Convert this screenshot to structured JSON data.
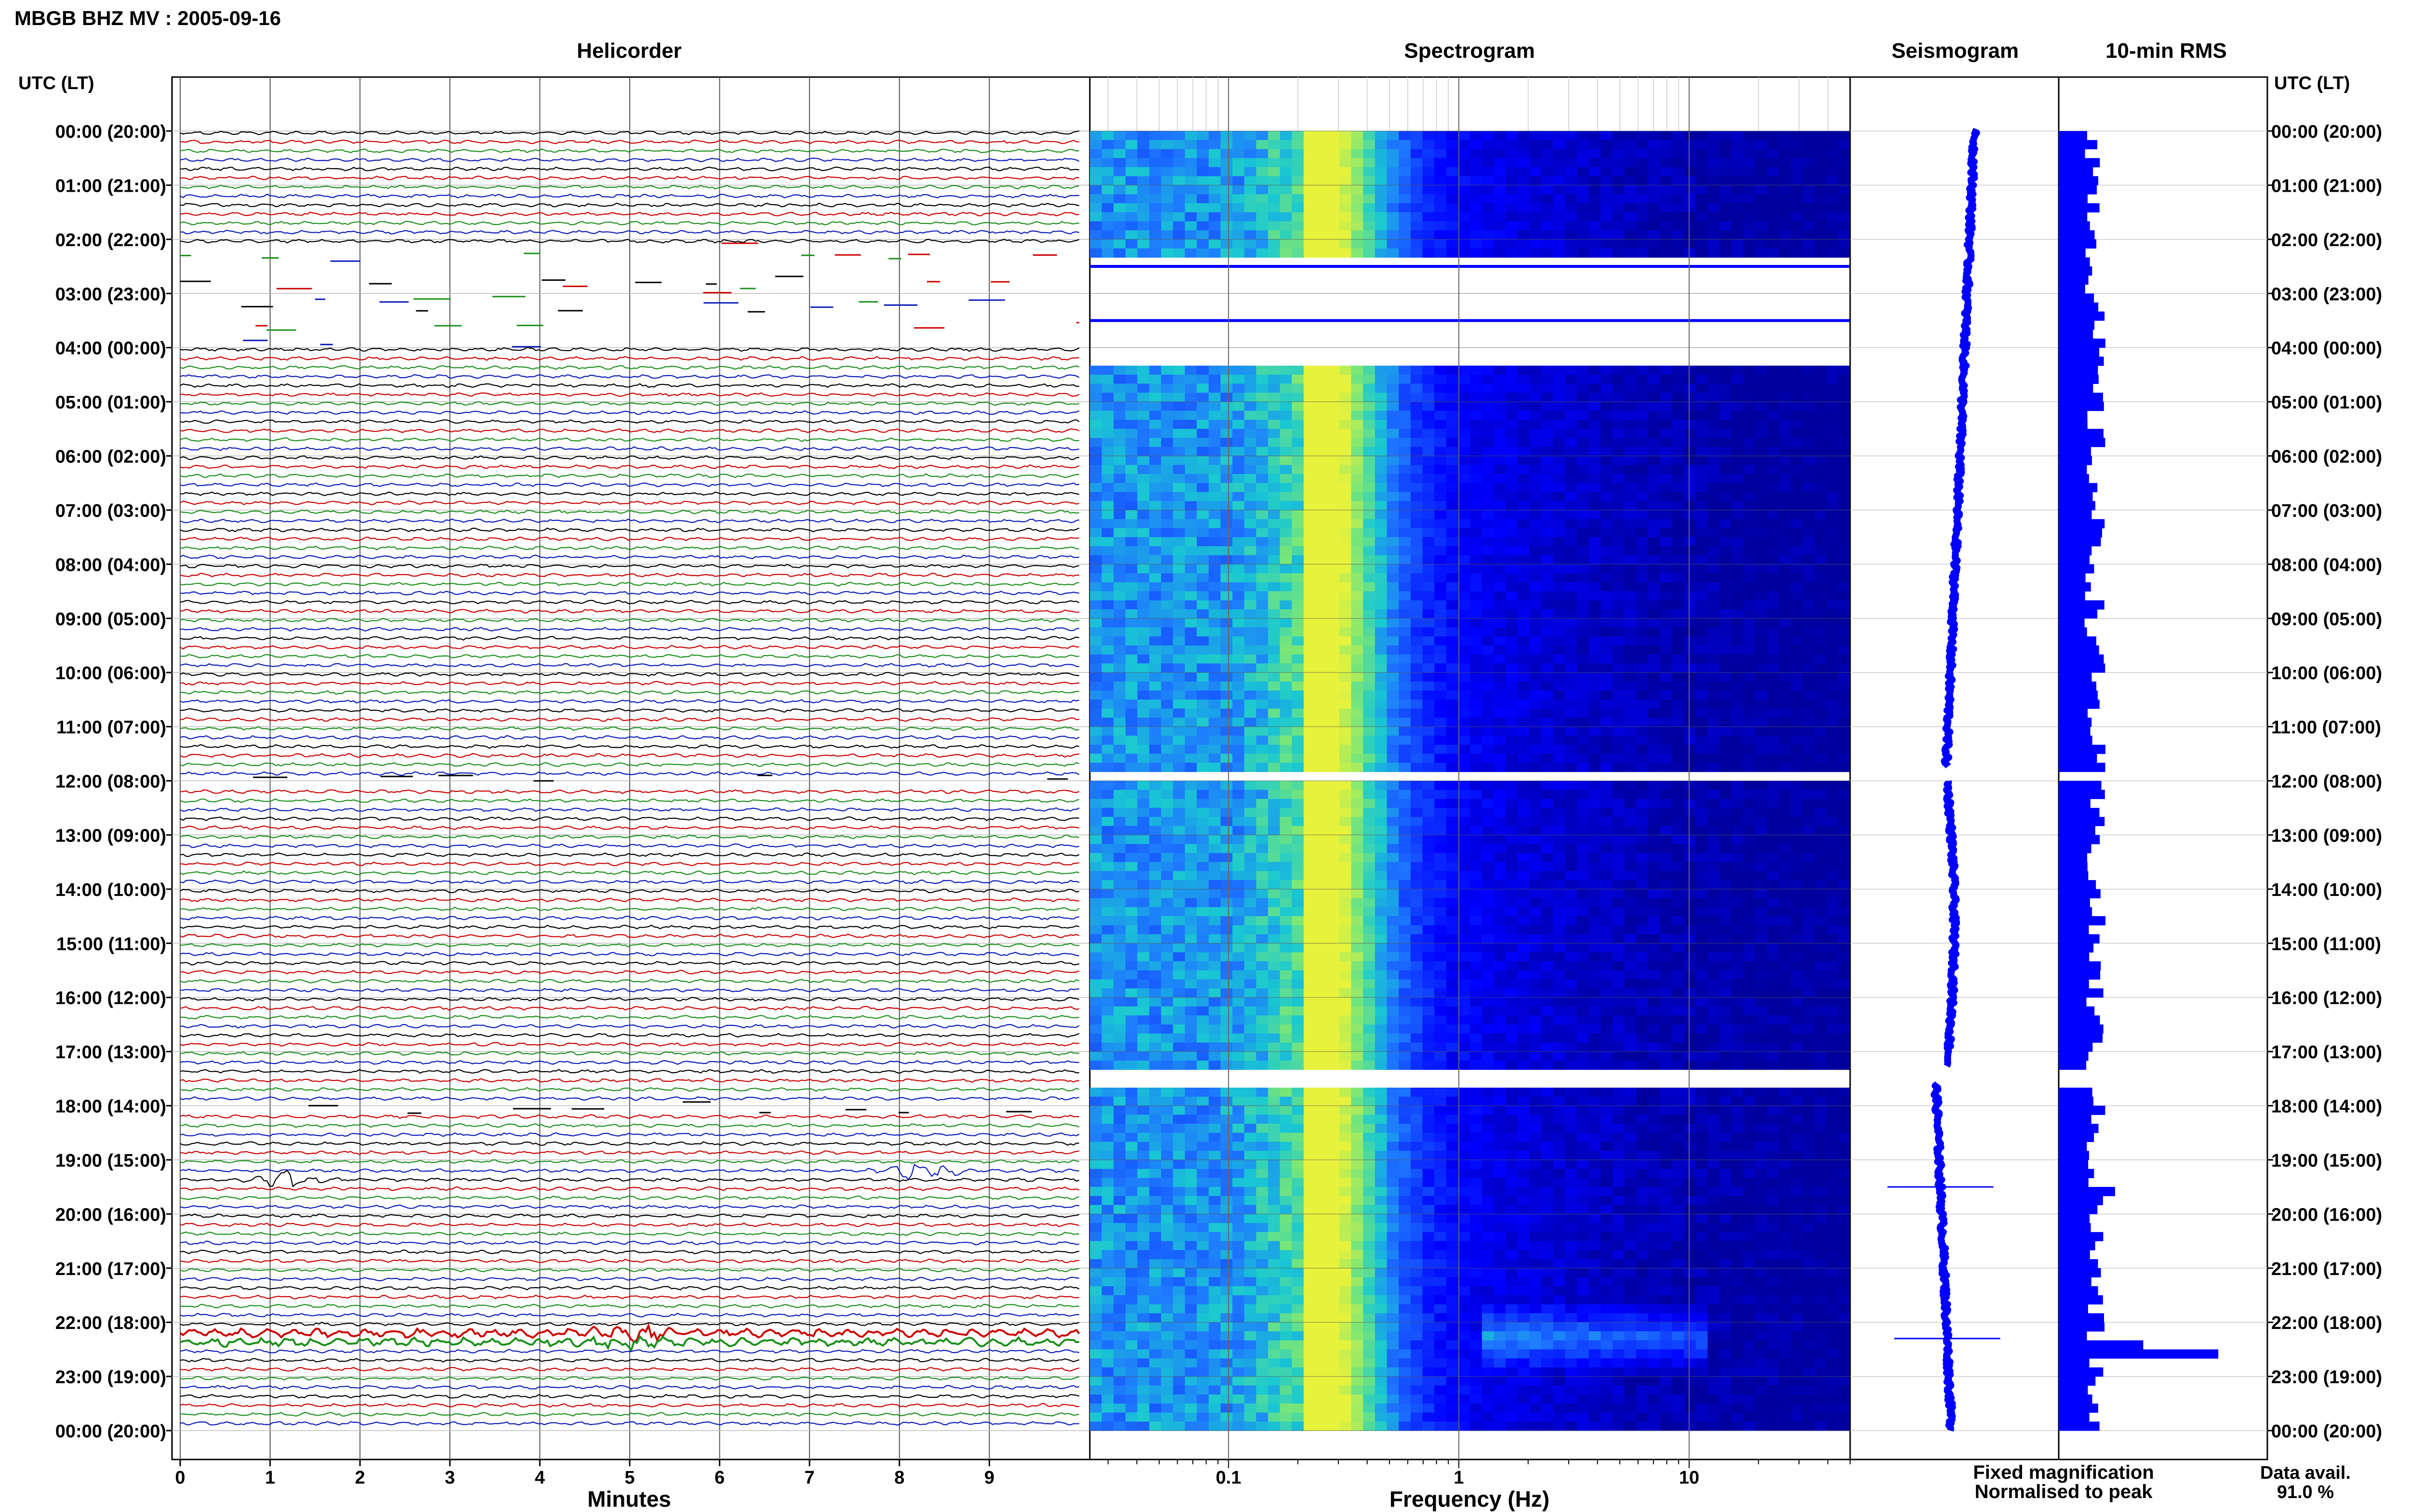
{
  "page": {
    "title": "MBGB BHZ MV : 2005-09-16"
  },
  "colors": {
    "trace_cycle": [
      "#000000",
      "#cc0000",
      "#1a8f1a",
      "#0a1ab8"
    ],
    "spectro_dark": "#00007f",
    "spectro_blue": "#0000ff",
    "spectro_cyan": "#19c8d2",
    "spectro_yellow": "#e6f23c",
    "seismo_blue": "#0000ff",
    "rms_blue": "#0000ff",
    "fixed_color": "#0000ff",
    "normalised_color": "#ff0000"
  },
  "time_axis": {
    "header_left": "UTC (LT)",
    "header_right": "UTC (LT)",
    "labels": [
      "00:00 (20:00)",
      "01:00 (21:00)",
      "02:00 (22:00)",
      "03:00 (23:00)",
      "04:00 (00:00)",
      "05:00 (01:00)",
      "06:00 (02:00)",
      "07:00 (03:00)",
      "08:00 (04:00)",
      "09:00 (05:00)",
      "10:00 (06:00)",
      "11:00 (07:00)",
      "12:00 (08:00)",
      "13:00 (09:00)",
      "14:00 (10:00)",
      "15:00 (11:00)",
      "16:00 (12:00)",
      "17:00 (13:00)",
      "18:00 (14:00)",
      "19:00 (15:00)",
      "20:00 (16:00)",
      "21:00 (17:00)",
      "22:00 (18:00)",
      "23:00 (19:00)",
      "00:00 (20:00)"
    ]
  },
  "chart_data": [
    {
      "type": "line",
      "name": "helicorder",
      "title": "Helicorder",
      "xlabel": "Minutes",
      "xlim": [
        0,
        10
      ],
      "xticks": [
        "0",
        "1",
        "2",
        "3",
        "4",
        "5",
        "6",
        "7",
        "8",
        "9"
      ],
      "ylim_hours": [
        0,
        24
      ],
      "lines_per_hour": 6,
      "gap_hours": [
        [
          2.1,
          4.0
        ],
        [
          11.95,
          12.05
        ],
        [
          17.95,
          18.05
        ]
      ],
      "events": [
        {
          "hour": 19.15,
          "minute": 8.2,
          "strength": 1.0
        },
        {
          "hour": 19.35,
          "minute": 1.2,
          "strength": 0.8
        },
        {
          "hour": 22.2,
          "minute": 5.0,
          "strength": 0.6
        },
        {
          "hour": 22.35,
          "minute": 5.0,
          "strength": 0.6
        }
      ]
    },
    {
      "type": "heatmap",
      "name": "spectrogram",
      "title": "Spectrogram",
      "xlabel": "Frequency (Hz)",
      "xscale": "log",
      "xlim": [
        0.025,
        50
      ],
      "xticks": [
        "0.1",
        "1",
        "10"
      ],
      "xtick_values": [
        0.1,
        1,
        10
      ],
      "ylim_hours": [
        0,
        24
      ],
      "peak_frequency_hz": 0.2,
      "gap_hours": [
        [
          2.2,
          4.2
        ],
        [
          11.75,
          12.0
        ],
        [
          17.3,
          17.6
        ]
      ],
      "noise_burst": {
        "hour_start": 21.5,
        "hour_end": 22.9,
        "f_low": 1.2,
        "f_high": 12
      }
    },
    {
      "type": "line",
      "name": "seismogram",
      "title": "Seismogram",
      "ylim_hours": [
        0,
        24
      ],
      "gap_hours": [
        [
          11.75,
          12.0
        ],
        [
          17.3,
          17.6
        ]
      ],
      "spikes_hours": [
        19.5,
        22.3
      ]
    },
    {
      "type": "bar",
      "name": "rms",
      "title": "10-min RMS",
      "ylim_hours": [
        0,
        24
      ],
      "bin_minutes": 10,
      "gap_hours": [
        [
          11.75,
          12.0
        ],
        [
          17.3,
          17.6
        ]
      ],
      "baseline": 0.25,
      "peaks": [
        {
          "hour": 22.45,
          "value": 0.85
        },
        {
          "hour": 22.3,
          "value": 0.45
        },
        {
          "hour": 19.5,
          "value": 0.3
        }
      ]
    }
  ],
  "legend": {
    "fixed": "Fixed magnification",
    "normalised": "Normalised to peak"
  },
  "availability": {
    "label": "Data avail.",
    "value": "91.0 %"
  }
}
